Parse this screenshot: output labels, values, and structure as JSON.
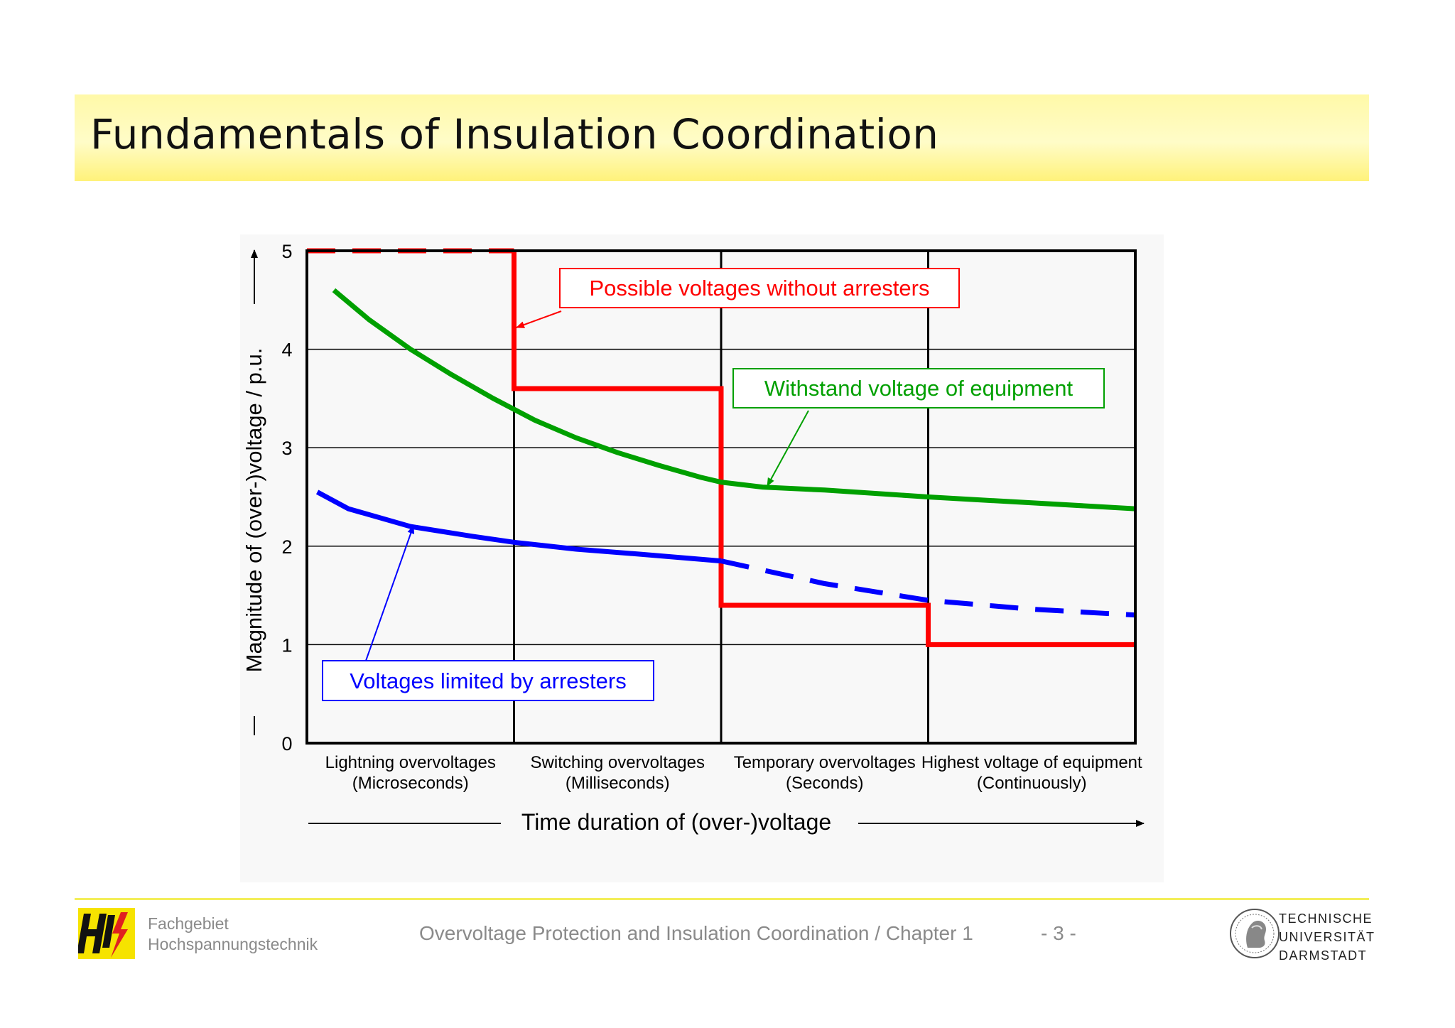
{
  "slide": {
    "title": "Fundamentals of Insulation Coordination"
  },
  "footer": {
    "dept_line1": "Fachgebiet",
    "dept_line2": "Hochspannungstechnik",
    "course": "Overvoltage Protection and Insulation Coordination / Chapter 1",
    "page": "- 3 -",
    "university_line1": "TECHNISCHE",
    "university_line2": "UNIVERSITÄT",
    "university_line3": "DARMSTADT",
    "colors": {
      "rule": "#f3ee5a",
      "text": "#8a8a8a"
    }
  },
  "chart_data": {
    "type": "line",
    "ylabel": "Magnitude of (over-)voltage  / p.u.",
    "xlabel": "Time duration of (over-)voltage",
    "ylim": [
      0,
      5
    ],
    "xlim": [
      0,
      4
    ],
    "yticks": [
      "0",
      "1",
      "2",
      "3",
      "4",
      "5"
    ],
    "grid": true,
    "categories": [
      {
        "line1": "Lightning overvoltages",
        "line2": "(Microseconds)"
      },
      {
        "line1": "Switching overvoltages",
        "line2": "(Milliseconds)"
      },
      {
        "line1": "Temporary overvoltages",
        "line2": "(Seconds)"
      },
      {
        "line1": "Highest voltage of equipment",
        "line2": "(Continuously)"
      }
    ],
    "annotations": {
      "red": "Possible voltages without arresters",
      "green": "Withstand voltage of  equipment",
      "blue": "Voltages limited by arresters"
    },
    "series": [
      {
        "color": "#ff0000",
        "dashed_segments": [
          {
            "x": [
              0,
              1
            ],
            "y": [
              5,
              5
            ]
          }
        ],
        "solid_segments": [
          {
            "x": [
              1,
              1,
              2,
              2,
              3,
              3,
              4
            ],
            "y": [
              5,
              3.6,
              3.6,
              1.4,
              1.4,
              1.0,
              1.0
            ]
          }
        ]
      },
      {
        "color": "#00a000",
        "solid_segments": [
          {
            "x": [
              0.13,
              0.3,
              0.5,
              0.7,
              0.9,
              1.1,
              1.3,
              1.5,
              1.7,
              1.9,
              2.0,
              2.2,
              2.5,
              3.0,
              3.5,
              4.0
            ],
            "y": [
              4.6,
              4.3,
              4.0,
              3.74,
              3.5,
              3.28,
              3.1,
              2.95,
              2.82,
              2.7,
              2.65,
              2.6,
              2.57,
              2.5,
              2.44,
              2.38
            ]
          }
        ]
      },
      {
        "color": "#0000ff",
        "solid_segments": [
          {
            "x": [
              0.05,
              0.2,
              0.5,
              0.8,
              1.0,
              1.3,
              1.6,
              2.0
            ],
            "y": [
              2.55,
              2.38,
              2.2,
              2.1,
              2.04,
              1.97,
              1.92,
              1.85
            ]
          }
        ],
        "dashed_segments": [
          {
            "x": [
              2.0,
              2.5,
              3.0,
              3.5,
              4.0
            ],
            "y": [
              1.85,
              1.62,
              1.45,
              1.36,
              1.3
            ]
          }
        ]
      }
    ]
  }
}
